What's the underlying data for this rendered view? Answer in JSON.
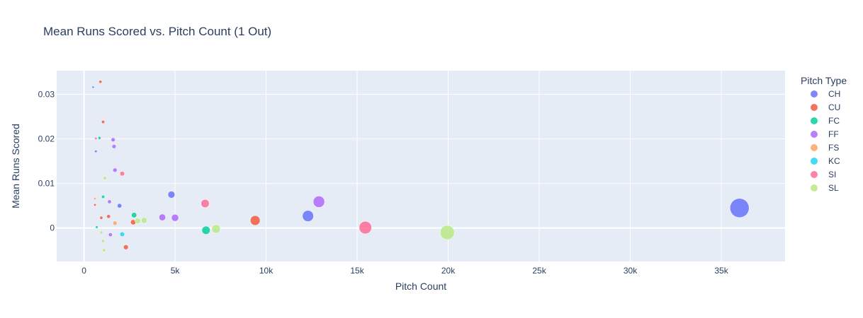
{
  "chart_data": {
    "type": "scatter",
    "title": "Mean Runs Scored vs. Pitch Count (1 Out)",
    "xlabel": "Pitch Count",
    "ylabel": "Mean Runs Scored",
    "xlim": [
      -1500,
      38500
    ],
    "ylim": [
      -0.0075,
      0.0353
    ],
    "x_ticks": [
      0,
      5000,
      10000,
      15000,
      20000,
      25000,
      30000,
      35000
    ],
    "x_tick_labels": [
      "0",
      "5k",
      "10k",
      "15k",
      "20k",
      "25k",
      "30k",
      "35k"
    ],
    "y_ticks": [
      0,
      0.01,
      0.02,
      0.03
    ],
    "y_tick_labels": [
      "0",
      "0.01",
      "0.02",
      "0.03"
    ],
    "grid": true,
    "legend_title": "Pitch Type",
    "legend_position": "right",
    "plot_bgcolor": "#E5ECF6",
    "size_max_count": 36000,
    "series": [
      {
        "name": "CH",
        "color": "#636EFA",
        "points": [
          {
            "x": 500,
            "y": 0.0316
          },
          {
            "x": 650,
            "y": 0.0172
          },
          {
            "x": 1950,
            "y": 0.005
          },
          {
            "x": 4800,
            "y": 0.0075
          },
          {
            "x": 12300,
            "y": 0.0027
          },
          {
            "x": 36000,
            "y": 0.0045
          }
        ]
      },
      {
        "name": "CU",
        "color": "#EF553B",
        "points": [
          {
            "x": 900,
            "y": 0.0328
          },
          {
            "x": 1050,
            "y": 0.0238
          },
          {
            "x": 600,
            "y": 0.0052
          },
          {
            "x": 950,
            "y": 0.0023
          },
          {
            "x": 1350,
            "y": 0.0026
          },
          {
            "x": 2700,
            "y": 0.0013
          },
          {
            "x": 2300,
            "y": -0.0043
          },
          {
            "x": 9400,
            "y": 0.0017
          }
        ]
      },
      {
        "name": "FC",
        "color": "#00CC96",
        "points": [
          {
            "x": 850,
            "y": 0.0202
          },
          {
            "x": 1050,
            "y": 0.007
          },
          {
            "x": 700,
            "y": 0.0002
          },
          {
            "x": 2750,
            "y": 0.0029
          },
          {
            "x": 6700,
            "y": -0.0005
          }
        ]
      },
      {
        "name": "FF",
        "color": "#AB63FA",
        "points": [
          {
            "x": 1600,
            "y": 0.0198
          },
          {
            "x": 1650,
            "y": 0.0183
          },
          {
            "x": 1700,
            "y": 0.013
          },
          {
            "x": 1400,
            "y": 0.0059
          },
          {
            "x": 1450,
            "y": -0.0015
          },
          {
            "x": 4300,
            "y": 0.0024
          },
          {
            "x": 5000,
            "y": 0.0023
          },
          {
            "x": 12900,
            "y": 0.0059
          }
        ]
      },
      {
        "name": "FS",
        "color": "#FFA15A",
        "points": [
          {
            "x": 600,
            "y": 0.0066
          },
          {
            "x": 1700,
            "y": 0.0011
          }
        ]
      },
      {
        "name": "KC",
        "color": "#19D3F3",
        "points": [
          {
            "x": 2100,
            "y": -0.0014
          }
        ]
      },
      {
        "name": "SI",
        "color": "#FF6692",
        "points": [
          {
            "x": 650,
            "y": 0.0201
          },
          {
            "x": 2100,
            "y": 0.0122
          },
          {
            "x": 6650,
            "y": 0.0055
          },
          {
            "x": 15450,
            "y": 0.0001
          }
        ]
      },
      {
        "name": "SL",
        "color": "#B6E880",
        "points": [
          {
            "x": 1150,
            "y": 0.0112
          },
          {
            "x": 950,
            "y": -0.001
          },
          {
            "x": 1050,
            "y": -0.0029
          },
          {
            "x": 1100,
            "y": -0.005
          },
          {
            "x": 2950,
            "y": 0.0016
          },
          {
            "x": 3300,
            "y": 0.0017
          },
          {
            "x": 7250,
            "y": -0.0002
          },
          {
            "x": 19950,
            "y": -0.001
          }
        ]
      }
    ]
  }
}
